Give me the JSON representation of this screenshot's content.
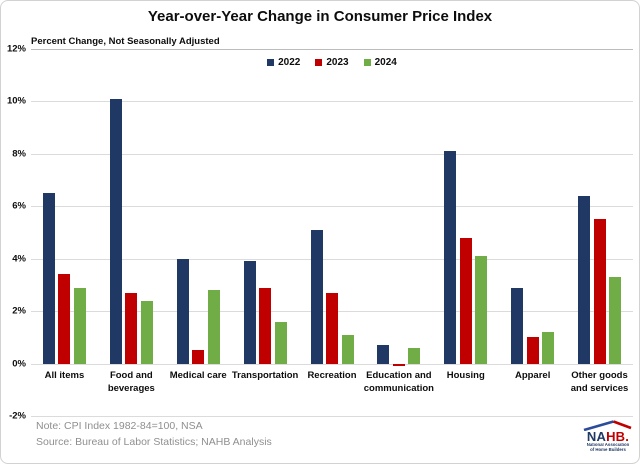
{
  "header": {
    "title": "Year-over-Year Change in Consumer Price Index",
    "subtitle": "Percent Change, Not Seasonally Adjusted"
  },
  "footer": {
    "note": "Note: CPI Index 1982-84=100, NSA",
    "source": "Source: Bureau of Labor Statistics; NAHB Analysis"
  },
  "logo": {
    "text_navy": "NA",
    "text_red": "HB.",
    "subtext": "National Association\nof Home Builders",
    "navy": "#1f3864",
    "red": "#c00000",
    "roof_blue": "#2b4b9b"
  },
  "chart_data": {
    "type": "bar",
    "title": "Year-over-Year Change in Consumer Price Index",
    "subtitle": "Percent Change, Not Seasonally Adjusted",
    "categories": [
      "All items",
      "Food and beverages",
      "Medical care",
      "Transportation",
      "Recreation",
      "Education and communication",
      "Housing",
      "Apparel",
      "Other goods and services"
    ],
    "category_labels": [
      "All items",
      "Food and\nbeverages",
      "Medical care",
      "Transportation",
      "Recreation",
      "Education and\ncommunication",
      "Housing",
      "Apparel",
      "Other goods\nand services"
    ],
    "series": [
      {
        "name": "2022",
        "color": "#1f3864",
        "values": [
          6.5,
          10.1,
          4.0,
          3.9,
          5.1,
          0.7,
          8.1,
          2.9,
          6.4
        ]
      },
      {
        "name": "2023",
        "color": "#c00000",
        "values": [
          3.4,
          2.7,
          0.5,
          2.9,
          2.7,
          -0.1,
          4.8,
          1.0,
          5.5
        ]
      },
      {
        "name": "2024",
        "color": "#70ad47",
        "values": [
          2.9,
          2.4,
          2.8,
          1.6,
          1.1,
          0.6,
          4.1,
          1.2,
          3.3
        ]
      }
    ],
    "ylim": [
      -2,
      12
    ],
    "ytick_step": 2,
    "ytick_suffix": "%",
    "grid": true,
    "grid_color": "#dbdbdb",
    "top_grid_color": "#bdbdbd",
    "legend_position": "top-center",
    "legend_labels": [
      "2022",
      "2023",
      "2024"
    ]
  }
}
